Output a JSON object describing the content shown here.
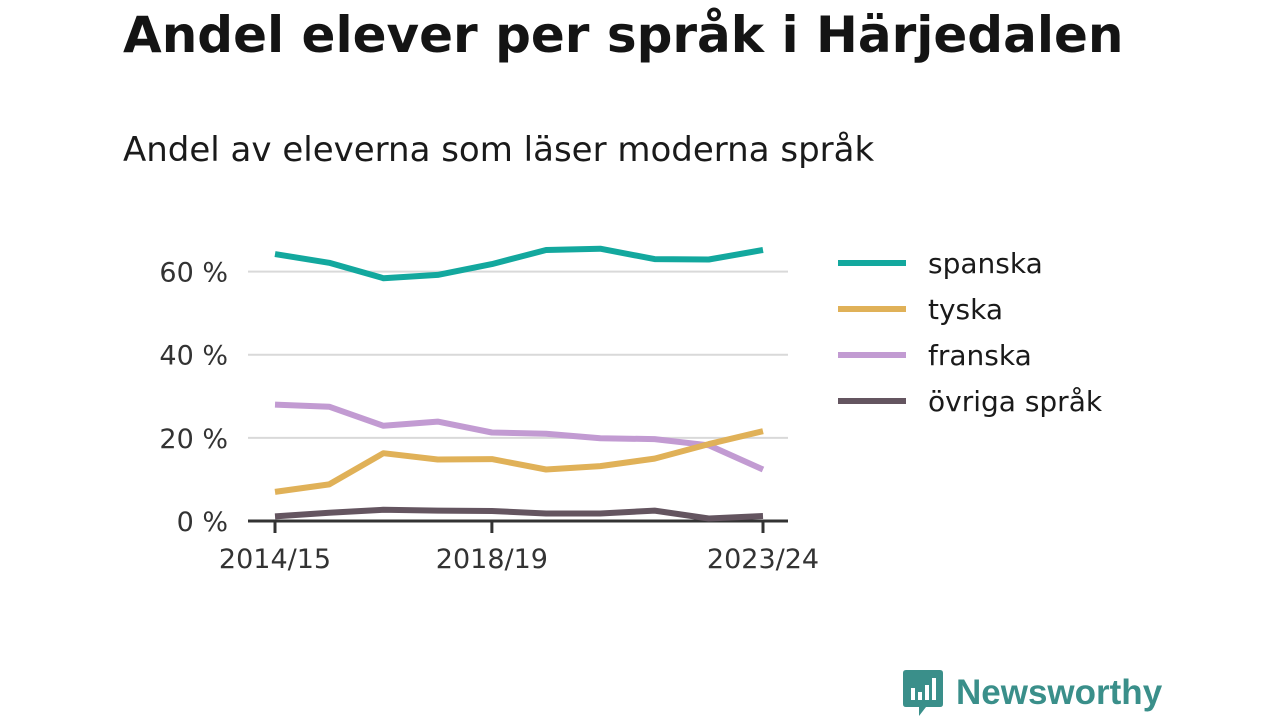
{
  "title": "Andel elever per språk i Härjedalen",
  "subtitle": "Andel av eleverna som läser moderna språk",
  "brand": {
    "name": "Newsworthy",
    "logo_color": "#3a8f8a"
  },
  "chart_data": {
    "type": "line",
    "x": [
      "2014/15",
      "2015/16",
      "2016/17",
      "2017/18",
      "2018/19",
      "2019/20",
      "2020/21",
      "2021/22",
      "2022/23",
      "2023/24"
    ],
    "x_tick_labels": [
      "2014/15",
      "2018/19",
      "2023/24"
    ],
    "y_ticks": [
      0,
      20,
      40,
      60
    ],
    "y_tick_labels": [
      "0 %",
      "20 %",
      "40 %",
      "60 %"
    ],
    "ylim": [
      0,
      70
    ],
    "grid": true,
    "legend_position": "right",
    "series": [
      {
        "name": "spanska",
        "color": "#13a89e",
        "values": [
          64.2,
          62.1,
          58.4,
          59.2,
          61.8,
          65.2,
          65.5,
          63.0,
          62.9,
          65.2
        ]
      },
      {
        "name": "tyska",
        "color": "#e0b158",
        "values": [
          7.0,
          8.8,
          16.3,
          14.8,
          14.9,
          12.4,
          13.2,
          15.0,
          18.5,
          21.6
        ]
      },
      {
        "name": "franska",
        "color": "#c29bd2",
        "values": [
          28.0,
          27.5,
          22.9,
          23.9,
          21.3,
          21.0,
          19.9,
          19.7,
          18.2,
          12.4
        ]
      },
      {
        "name": "övriga språk",
        "color": "#645560",
        "values": [
          1.1,
          2.0,
          2.7,
          2.5,
          2.4,
          1.8,
          1.8,
          2.5,
          0.6,
          1.2
        ]
      }
    ]
  }
}
